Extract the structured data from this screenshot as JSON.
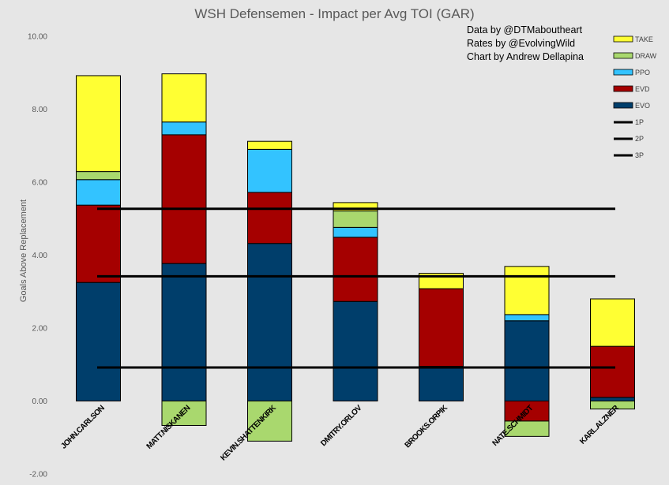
{
  "chart_data": {
    "type": "bar",
    "stacked": true,
    "title": "WSH Defensemen - Impact per Avg TOI (GAR)",
    "xlabel": "",
    "ylabel": "Goals Above Replacement",
    "ylim": [
      -2,
      10
    ],
    "yticks": [
      -2,
      0,
      2,
      4,
      6,
      8,
      10
    ],
    "ytick_labels": [
      "-2.00",
      "0.00",
      "2.00",
      "4.00",
      "6.00",
      "8.00",
      "10.00"
    ],
    "grid": false,
    "legend_position": "top-right",
    "categories": [
      "JOHN.CARLSON",
      "MATT.NISKANEN",
      "KEVIN.SHATTENKIRK",
      "DMITRY.ORLOV",
      "BROOKS.ORPIK",
      "NATE.SCHMIDT",
      "KARL.ALZNER"
    ],
    "series": [
      {
        "name": "EVO",
        "color": "#003e6b",
        "values": [
          3.25,
          3.77,
          4.32,
          2.73,
          0.95,
          2.2,
          0.1
        ]
      },
      {
        "name": "EVD",
        "color": "#a50000",
        "values": [
          2.12,
          3.53,
          1.4,
          1.76,
          2.13,
          -0.55,
          1.4
        ]
      },
      {
        "name": "PPO",
        "color": "#33c3ff",
        "values": [
          0.7,
          0.35,
          1.18,
          0.27,
          0.0,
          0.17,
          0.0
        ]
      },
      {
        "name": "DRAW",
        "color": "#a9d86e",
        "values": [
          0.22,
          -0.67,
          -1.1,
          0.45,
          0.0,
          -0.42,
          -0.22
        ]
      },
      {
        "name": "TAKE",
        "color": "#ffff33",
        "values": [
          2.63,
          1.32,
          0.22,
          0.23,
          0.42,
          1.32,
          1.3
        ]
      }
    ],
    "reference_lines": [
      {
        "name": "1P",
        "value": 5.27,
        "color": "#000000"
      },
      {
        "name": "2P",
        "value": 3.42,
        "color": "#000000"
      },
      {
        "name": "3P",
        "value": 0.92,
        "color": "#000000"
      }
    ],
    "legend_order": [
      "TAKE",
      "DRAW",
      "PPO",
      "EVD",
      "EVO",
      "1P",
      "2P",
      "3P"
    ],
    "annotations": [
      "Data by @DTMaboutheart",
      "Rates by @EvolvingWild",
      "Chart by Andrew Dellapina"
    ]
  }
}
